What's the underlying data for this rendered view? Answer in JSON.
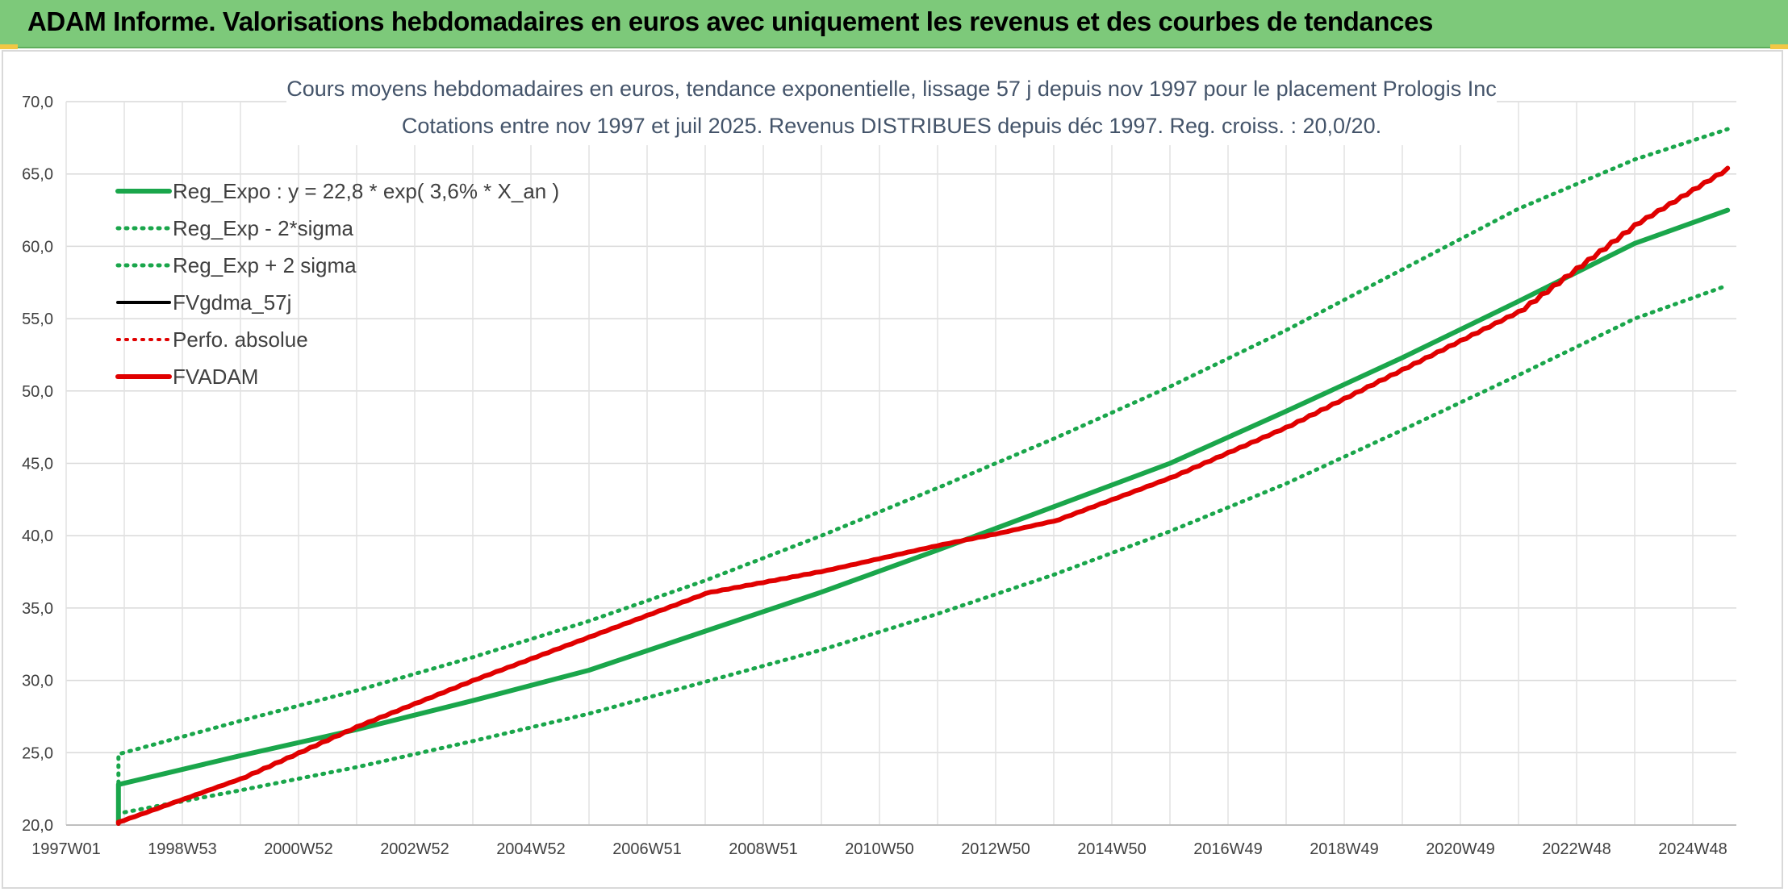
{
  "banner": {
    "title": "ADAM Informe. Valorisations hebdomadaires en euros avec uniquement les revenus et des courbes de tendances"
  },
  "chart_data": {
    "type": "line",
    "title": "Cours moyens hebdomadaires en euros, tendance exponentielle, lissage 57 j depuis nov 1997 pour le placement Prologis Inc",
    "subtitle": "Cotations entre nov 1997 et juil 2025. Revenus DISTRIBUES depuis déc 1997. Reg. croiss. : 20,0/20.",
    "xlabel": "",
    "ylabel": "",
    "ylim": [
      20,
      70
    ],
    "yticks": [
      "20,0",
      "25,0",
      "30,0",
      "35,0",
      "40,0",
      "45,0",
      "50,0",
      "55,0",
      "60,0",
      "65,0",
      "70,0"
    ],
    "xlim": [
      1997.0,
      2025.75
    ],
    "xticks": [
      {
        "label": "1997W01",
        "x": 1997.0
      },
      {
        "label": "1998W53",
        "x": 1999.0
      },
      {
        "label": "2000W52",
        "x": 2001.0
      },
      {
        "label": "2002W52",
        "x": 2003.0
      },
      {
        "label": "2004W52",
        "x": 2005.0
      },
      {
        "label": "2006W51",
        "x": 2007.0
      },
      {
        "label": "2008W51",
        "x": 2009.0
      },
      {
        "label": "2010W50",
        "x": 2011.0
      },
      {
        "label": "2012W50",
        "x": 2013.0
      },
      {
        "label": "2014W50",
        "x": 2015.0
      },
      {
        "label": "2016W49",
        "x": 2017.0
      },
      {
        "label": "2018W49",
        "x": 2019.0
      },
      {
        "label": "2020W49",
        "x": 2021.0
      },
      {
        "label": "2022W48",
        "x": 2023.0
      },
      {
        "label": "2024W48",
        "x": 2025.0
      }
    ],
    "grid": true,
    "legend_position": "top-left",
    "x_start": 1997.9,
    "x_end": 2025.6,
    "series": [
      {
        "name": "Reg_Expo : y = 22,8 * exp( 3,6% *  X_an )",
        "color": "#1aa64b",
        "style": "solid",
        "width": 6,
        "x": [
          1997.9,
          2000,
          2002,
          2004,
          2006,
          2008,
          2010,
          2012,
          2014,
          2016,
          2018,
          2020,
          2022,
          2024,
          2025.6
        ],
        "y": [
          22.8,
          24.8,
          26.6,
          28.6,
          30.7,
          33.4,
          36.1,
          39.0,
          42.0,
          45.0,
          48.6,
          52.3,
          56.2,
          60.2,
          62.5
        ]
      },
      {
        "name": "Reg_Exp - 2*sigma",
        "color": "#1aa64b",
        "style": "dotted",
        "width": 5,
        "x": [
          1997.9,
          2000,
          2002,
          2004,
          2006,
          2008,
          2010,
          2012,
          2014,
          2016,
          2018,
          2020,
          2022,
          2024,
          2025.6
        ],
        "y": [
          20.8,
          22.4,
          24.0,
          25.8,
          27.7,
          29.9,
          32.1,
          34.6,
          37.3,
          40.3,
          43.6,
          47.3,
          51.1,
          55.0,
          57.3
        ]
      },
      {
        "name": "Reg_Exp + 2 sigma",
        "color": "#1aa64b",
        "style": "dotted",
        "width": 5,
        "x": [
          1997.9,
          2000,
          2002,
          2004,
          2006,
          2008,
          2010,
          2012,
          2014,
          2016,
          2018,
          2020,
          2022,
          2024,
          2025.6
        ],
        "y": [
          24.9,
          27.2,
          29.3,
          31.6,
          34.1,
          36.9,
          40.0,
          43.3,
          46.7,
          50.3,
          54.2,
          58.4,
          62.6,
          66.0,
          68.1
        ]
      },
      {
        "name": "FVgdma_57j",
        "color": "#000000",
        "style": "solid",
        "width": 4,
        "x": [],
        "y": []
      },
      {
        "name": "Perfo. absolue",
        "color": "#e00000",
        "style": "dotted",
        "width": 4,
        "x": [],
        "y": []
      },
      {
        "name": "FVADAM",
        "color": "#e00000",
        "style": "solid",
        "width": 6,
        "x": [
          1997.9,
          2000,
          2002,
          2004,
          2006,
          2008,
          2010,
          2012,
          2013,
          2014,
          2016,
          2018,
          2020,
          2022,
          2023,
          2024,
          2025.6
        ],
        "y": [
          20.2,
          23.2,
          26.8,
          30.0,
          33.0,
          36.0,
          37.5,
          39.3,
          40.1,
          41.0,
          44.0,
          47.5,
          51.5,
          55.5,
          58.5,
          61.5,
          65.4
        ]
      }
    ]
  }
}
